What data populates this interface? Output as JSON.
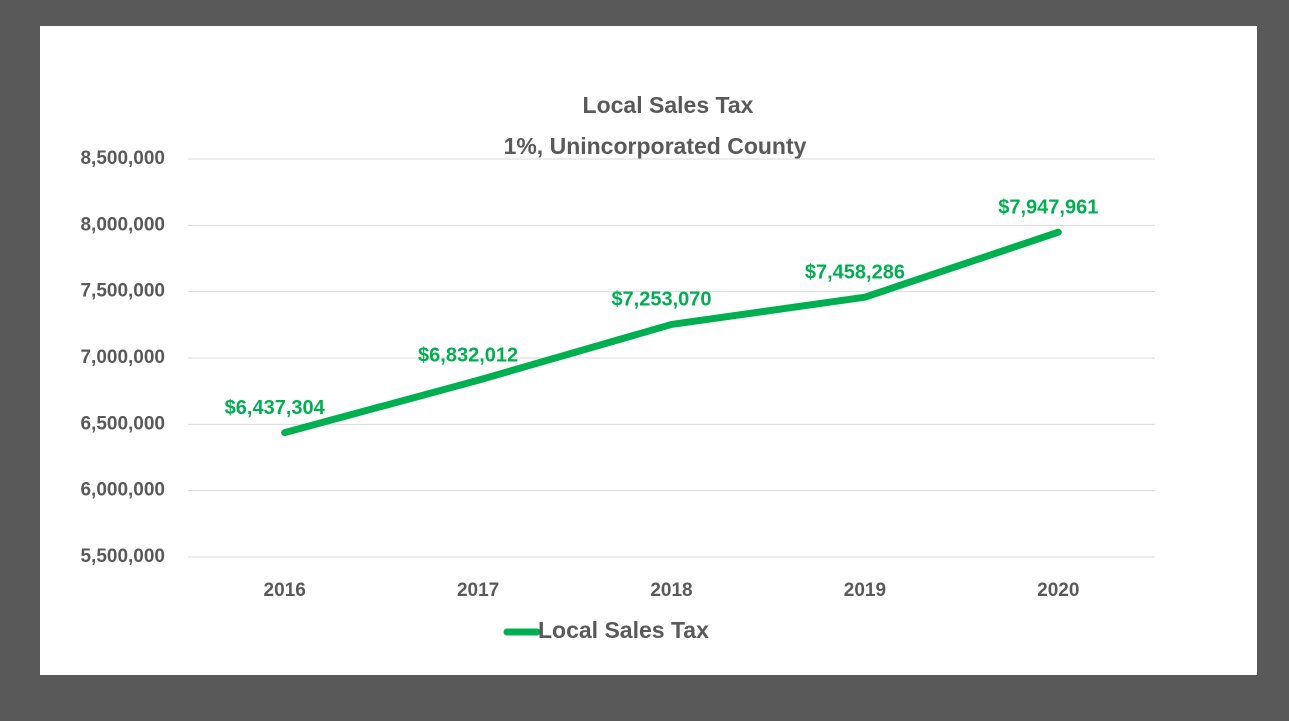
{
  "chart_data": {
    "type": "line",
    "title": "Local Sales Tax",
    "subtitle": "1%, Unincorporated County",
    "categories": [
      "2016",
      "2017",
      "2018",
      "2019",
      "2020"
    ],
    "series": [
      {
        "name": "Local Sales Tax",
        "color": "#00b050",
        "values": [
          6437304,
          6832012,
          7253070,
          7458286,
          7947961
        ],
        "value_labels": [
          "$6,437,304",
          "$6,832,012",
          "$7,253,070",
          "$7,458,286",
          "$7,947,961"
        ]
      }
    ],
    "ylim": [
      5500000,
      8500000
    ],
    "yticks": [
      {
        "value": 5500000,
        "label": "5,500,000"
      },
      {
        "value": 6000000,
        "label": "6,000,000"
      },
      {
        "value": 6500000,
        "label": "6,500,000"
      },
      {
        "value": 7000000,
        "label": "7,000,000"
      },
      {
        "value": 7500000,
        "label": "7,500,000"
      },
      {
        "value": 8000000,
        "label": "8,000,000"
      },
      {
        "value": 8500000,
        "label": "8,500,000"
      }
    ],
    "grid": true,
    "legend": "bottom"
  }
}
